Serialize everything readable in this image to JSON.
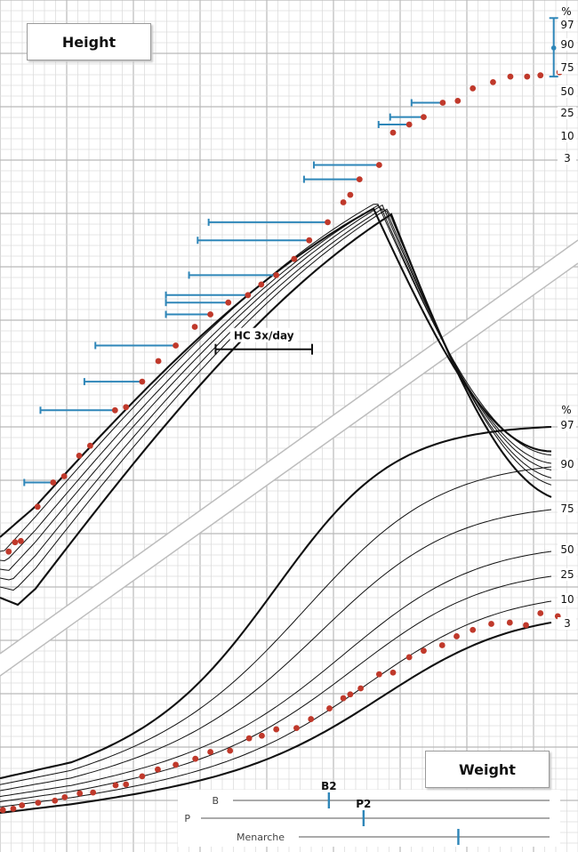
{
  "chart_data": [
    {
      "type": "line",
      "title": "Height",
      "centile_label": "%",
      "centiles": [
        "97",
        "90",
        "75",
        "50",
        "25",
        "10",
        "3"
      ],
      "x_range": [
        0,
        100
      ],
      "y_range": [
        0,
        100
      ],
      "grid": true,
      "measurements": [
        {
          "x": 1.5,
          "y": 11.4,
          "bar_from": null
        },
        {
          "x": 2.6,
          "y": 12.9,
          "bar_from": null
        },
        {
          "x": 3.6,
          "y": 13.1,
          "bar_from": null
        },
        {
          "x": 6.5,
          "y": 18.6,
          "bar_from": null
        },
        {
          "x": 9.2,
          "y": 22.5,
          "bar_from": 4.2
        },
        {
          "x": 11.1,
          "y": 23.5,
          "bar_from": null
        },
        {
          "x": 13.7,
          "y": 26.8,
          "bar_from": null
        },
        {
          "x": 15.6,
          "y": 28.4,
          "bar_from": null
        },
        {
          "x": 19.9,
          "y": 34.1,
          "bar_from": 7.0
        },
        {
          "x": 21.8,
          "y": 34.6,
          "bar_from": null
        },
        {
          "x": 24.6,
          "y": 38.7,
          "bar_from": 14.6
        },
        {
          "x": 27.4,
          "y": 42.0,
          "bar_from": null
        },
        {
          "x": 30.4,
          "y": 44.5,
          "bar_from": 16.5
        },
        {
          "x": 33.7,
          "y": 47.5,
          "bar_from": null
        },
        {
          "x": 36.4,
          "y": 49.5,
          "bar_from": 28.7
        },
        {
          "x": 39.5,
          "y": 51.4,
          "bar_from": 28.7
        },
        {
          "x": 42.9,
          "y": 52.6,
          "bar_from": 28.7
        },
        {
          "x": 45.2,
          "y": 54.3,
          "bar_from": null
        },
        {
          "x": 47.8,
          "y": 55.8,
          "bar_from": 32.7
        },
        {
          "x": 50.9,
          "y": 58.4,
          "bar_from": null
        },
        {
          "x": 53.5,
          "y": 61.4,
          "bar_from": 34.2
        },
        {
          "x": 56.7,
          "y": 64.3,
          "bar_from": 36.1
        },
        {
          "x": 59.4,
          "y": 67.5,
          "bar_from": null
        },
        {
          "x": 60.6,
          "y": 68.7,
          "bar_from": null
        },
        {
          "x": 62.2,
          "y": 71.2,
          "bar_from": 52.6
        },
        {
          "x": 65.6,
          "y": 73.5,
          "bar_from": 54.3
        },
        {
          "x": 68.0,
          "y": 78.7,
          "bar_from": null
        },
        {
          "x": 70.8,
          "y": 80.0,
          "bar_from": 65.5
        },
        {
          "x": 73.3,
          "y": 81.2,
          "bar_from": 67.5
        },
        {
          "x": 76.6,
          "y": 83.5,
          "bar_from": 71.2
        },
        {
          "x": 79.2,
          "y": 83.8,
          "bar_from": null
        },
        {
          "x": 81.8,
          "y": 85.8,
          "bar_from": null
        },
        {
          "x": 85.3,
          "y": 86.8,
          "bar_from": null
        },
        {
          "x": 88.3,
          "y": 87.7,
          "bar_from": null
        },
        {
          "x": 91.2,
          "y": 87.7,
          "bar_from": null
        },
        {
          "x": 93.5,
          "y": 87.9,
          "bar_from": null
        },
        {
          "x": 96.8,
          "y": 88.4,
          "bar_from": null
        }
      ],
      "mid_parental_range": {
        "x": 95.8,
        "low": 87.7,
        "mid": 92.3,
        "high": 97.1
      },
      "annotation": {
        "label": "HC 3x/day",
        "x_from": 37.3,
        "x_to": 54.0,
        "y": 43.9
      }
    },
    {
      "type": "line",
      "title": "Weight",
      "centile_label": "%",
      "centiles": [
        "97",
        "90",
        "75",
        "50",
        "25",
        "10",
        "3"
      ],
      "x_range": [
        0,
        100
      ],
      "y_range": [
        0,
        100
      ],
      "grid": true,
      "measurements": [
        {
          "x": 0.5,
          "y": 4.0
        },
        {
          "x": 2.3,
          "y": 4.3
        },
        {
          "x": 3.8,
          "y": 5.1
        },
        {
          "x": 6.6,
          "y": 5.7
        },
        {
          "x": 9.5,
          "y": 6.2
        },
        {
          "x": 11.2,
          "y": 7.0
        },
        {
          "x": 13.8,
          "y": 7.9
        },
        {
          "x": 16.1,
          "y": 8.1
        },
        {
          "x": 20.0,
          "y": 9.8
        },
        {
          "x": 21.8,
          "y": 10.0
        },
        {
          "x": 24.6,
          "y": 11.9
        },
        {
          "x": 27.3,
          "y": 13.5
        },
        {
          "x": 30.4,
          "y": 14.6
        },
        {
          "x": 33.8,
          "y": 16.0
        },
        {
          "x": 36.4,
          "y": 17.6
        },
        {
          "x": 39.8,
          "y": 17.9
        },
        {
          "x": 43.1,
          "y": 20.8
        },
        {
          "x": 45.3,
          "y": 21.4
        },
        {
          "x": 47.8,
          "y": 22.9
        },
        {
          "x": 51.3,
          "y": 23.2
        },
        {
          "x": 53.8,
          "y": 25.3
        },
        {
          "x": 57.0,
          "y": 27.8
        },
        {
          "x": 59.4,
          "y": 30.2
        },
        {
          "x": 60.6,
          "y": 31.1
        },
        {
          "x": 62.4,
          "y": 32.5
        },
        {
          "x": 65.6,
          "y": 35.8
        },
        {
          "x": 68.0,
          "y": 36.2
        },
        {
          "x": 70.8,
          "y": 39.8
        },
        {
          "x": 73.3,
          "y": 41.3
        },
        {
          "x": 76.5,
          "y": 42.6
        },
        {
          "x": 79.0,
          "y": 44.7
        },
        {
          "x": 81.8,
          "y": 46.2
        },
        {
          "x": 85.0,
          "y": 47.6
        },
        {
          "x": 88.2,
          "y": 47.9
        },
        {
          "x": 91.0,
          "y": 47.3
        },
        {
          "x": 93.5,
          "y": 50.1
        },
        {
          "x": 96.5,
          "y": 49.4
        }
      ]
    }
  ],
  "puberty": [
    {
      "label": "B",
      "marker_label": "B2",
      "marker_x": 56.9
    },
    {
      "label": "P",
      "marker_label": "P2",
      "marker_x": 62.9
    },
    {
      "label": "Menarche",
      "marker_label": "",
      "marker_x": 79.3
    }
  ],
  "colors": {
    "grid_minor": "#dddddd",
    "grid_major": "#b9b9b9",
    "centile_line": "#111111",
    "measurement_point": "#c0392b",
    "bone_age_bar": "#2e86b8",
    "diagonal_band": "#bdbdbd"
  }
}
